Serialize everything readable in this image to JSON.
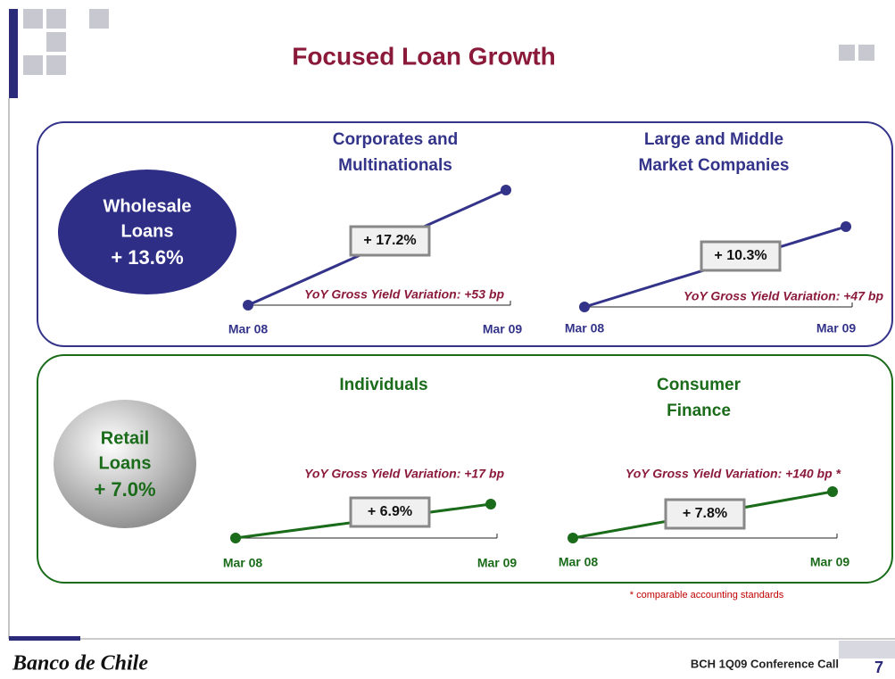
{
  "title": "Focused Loan Growth",
  "wholesale": {
    "label": [
      "Wholesale",
      "Loans",
      "+ 13.6%"
    ],
    "panels": [
      {
        "title": [
          "Corporates and",
          "Multinationals"
        ],
        "growth": "+ 17.2%",
        "yield": "YoY Gross Yield Variation: +53 bp",
        "start": "Mar 08",
        "end": "Mar 09"
      },
      {
        "title": [
          "Large and Middle",
          "Market Companies"
        ],
        "growth": "+ 10.3%",
        "yield": "YoY Gross Yield Variation: +47 bp",
        "start": "Mar 08",
        "end": "Mar 09"
      }
    ]
  },
  "retail": {
    "label": [
      "Retail",
      "Loans",
      "+ 7.0%"
    ],
    "panels": [
      {
        "title": [
          "Individuals"
        ],
        "growth": "+ 6.9%",
        "yield": "YoY Gross Yield Variation: +17 bp",
        "start": "Mar 08",
        "end": "Mar 09"
      },
      {
        "title": [
          "Consumer",
          "Finance"
        ],
        "growth": "+ 7.8%",
        "yield": "YoY Gross Yield Variation: +140 bp *",
        "start": "Mar 08",
        "end": "Mar 09"
      }
    ]
  },
  "footnote": "* comparable accounting standards",
  "footer": {
    "brand": "Banco de Chile",
    "event": "BCH 1Q09 Conference Call",
    "page": "7"
  }
}
